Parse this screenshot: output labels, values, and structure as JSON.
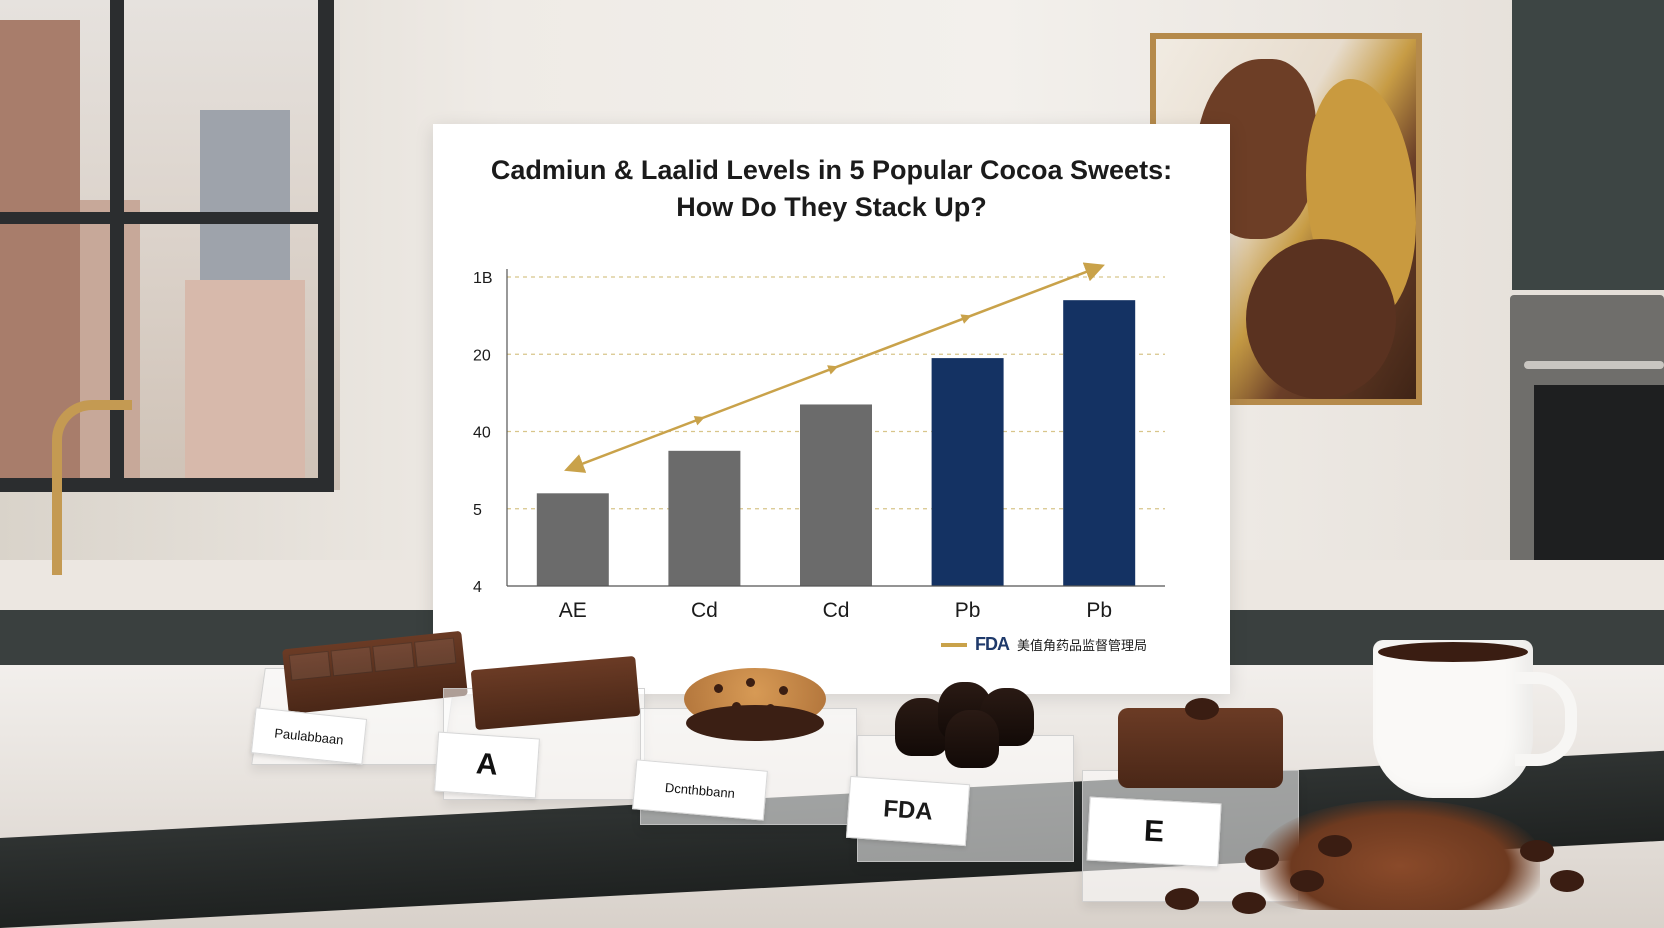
{
  "chart_data": {
    "type": "bar",
    "title_lines": [
      "Cadmiun & Laalid Levels in 5 Popular Cocoa Sweets:",
      "How Do They Stack Up?"
    ],
    "categories": [
      "AE",
      "Cd",
      "Cd",
      "Pb",
      "Pb"
    ],
    "y_tick_labels": [
      "4",
      "5",
      "40",
      "20",
      "1B"
    ],
    "y_tick_positions": [
      0,
      1,
      2,
      3,
      4
    ],
    "values": [
      1.2,
      1.75,
      2.35,
      2.95,
      3.7
    ],
    "bar_colors": [
      "#6b6b6b",
      "#6b6b6b",
      "#6b6b6b",
      "#143263",
      "#143263"
    ],
    "ylim": [
      0,
      4
    ],
    "grid": true,
    "trend_arrow": true,
    "legend": {
      "position": "bottom-right",
      "logo": "FDA",
      "label": "美值角药品监督管理局"
    }
  },
  "product_cards": [
    {
      "label": "Paulabbaan"
    },
    {
      "label": "A"
    },
    {
      "label": "Dcnthbbann"
    },
    {
      "label": "FDA"
    },
    {
      "label": "E"
    }
  ],
  "colors": {
    "accent_gold": "#c9a24a",
    "bar_gray": "#6b6b6b",
    "bar_navy": "#143263",
    "grid": "#d8c58a"
  }
}
